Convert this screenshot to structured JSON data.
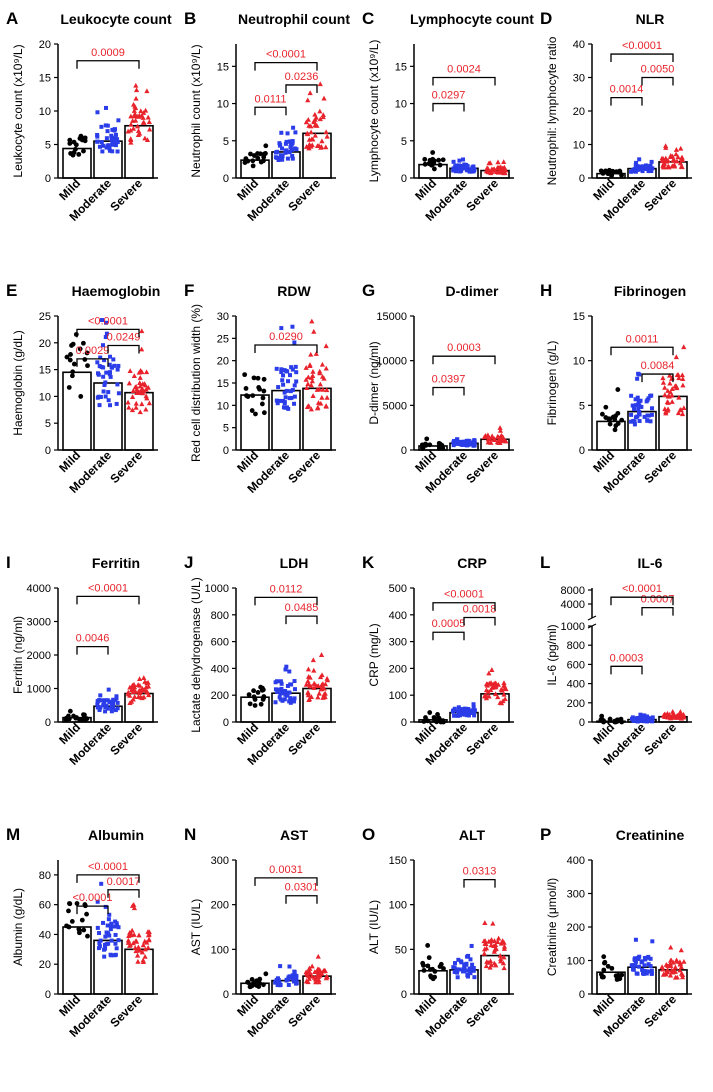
{
  "colors": {
    "mild": "#000000",
    "moderate": "#2b3de8",
    "severe": "#e8232b",
    "pvalue": "#e8232b"
  },
  "chart_data": [
    {
      "type": "bar",
      "panel": "A",
      "title": "Leukocyte count",
      "ylabel": "Leukocyte count (x10⁹/L)",
      "categories": [
        "Mild",
        "Moderate",
        "Severe"
      ],
      "values": [
        4.4,
        5.5,
        7.8
      ],
      "ylim": [
        0,
        20
      ],
      "yticks": [
        "0",
        "5",
        "10",
        "15",
        "20"
      ],
      "pvalues": [
        {
          "label": "0.0009",
          "from": 0,
          "to": 2,
          "y": 17.5
        }
      ]
    },
    {
      "type": "bar",
      "panel": "B",
      "title": "Neutrophil count",
      "ylabel": "Neutrophil count (x10⁹/L)",
      "categories": [
        "Mild",
        "Moderate",
        "Severe"
      ],
      "values": [
        2.4,
        3.5,
        6.0
      ],
      "ylim": [
        0,
        18
      ],
      "yticks": [
        "0",
        "5",
        "10",
        "15"
      ],
      "pvalues": [
        {
          "label": "0.0111",
          "from": 0,
          "to": 1,
          "y": 9.5
        },
        {
          "label": "0.0236",
          "from": 1,
          "to": 2,
          "y": 12.5
        },
        {
          "label": "<0.0001",
          "from": 0,
          "to": 2,
          "y": 15.5
        }
      ]
    },
    {
      "type": "bar",
      "panel": "C",
      "title": "Lymphocyte count",
      "ylabel": "Lymphocyte count (x10⁹/L)",
      "categories": [
        "Mild",
        "Moderate",
        "Severe"
      ],
      "values": [
        1.8,
        1.3,
        1.0
      ],
      "ylim": [
        0,
        18
      ],
      "yticks": [
        "0",
        "5",
        "10",
        "15"
      ],
      "pvalues": [
        {
          "label": "0.0297",
          "from": 0,
          "to": 1,
          "y": 10
        },
        {
          "label": "0.0024",
          "from": 0,
          "to": 2,
          "y": 13.5
        }
      ]
    },
    {
      "type": "bar",
      "panel": "D",
      "title": "NLR",
      "ylabel": "Neutrophil: lymphocyte ratio",
      "categories": [
        "Mild",
        "Moderate",
        "Severe"
      ],
      "values": [
        1.3,
        2.8,
        4.8
      ],
      "ylim": [
        0,
        40
      ],
      "yticks": [
        "0",
        "10",
        "20",
        "30",
        "40"
      ],
      "pvalues": [
        {
          "label": "0.0014",
          "from": 0,
          "to": 1,
          "y": 24
        },
        {
          "label": "0.0050",
          "from": 1,
          "to": 2,
          "y": 30
        },
        {
          "label": "<0.0001",
          "from": 0,
          "to": 2,
          "y": 37
        }
      ]
    },
    {
      "type": "bar",
      "panel": "E",
      "title": "Haemoglobin",
      "ylabel": "Haemoglobin (g/dL)",
      "categories": [
        "Mild",
        "Moderate",
        "Severe"
      ],
      "values": [
        14.5,
        12.5,
        10.7
      ],
      "ylim": [
        0,
        25
      ],
      "yticks": [
        "0",
        "5",
        "10",
        "15",
        "20",
        "25"
      ],
      "pvalues": [
        {
          "label": "0.0029",
          "from": 0,
          "to": 1,
          "y": 17
        },
        {
          "label": "0.0249",
          "from": 1,
          "to": 2,
          "y": 19.5
        },
        {
          "label": "<0.0001",
          "from": 0,
          "to": 2,
          "y": 22.5
        }
      ]
    },
    {
      "type": "bar",
      "panel": "F",
      "title": "RDW",
      "ylabel": "Red cell distribution width (%)",
      "categories": [
        "Mild",
        "Moderate",
        "Severe"
      ],
      "values": [
        12.3,
        13.3,
        13.8
      ],
      "ylim": [
        0,
        30
      ],
      "yticks": [
        "0",
        "5",
        "10",
        "15",
        "20",
        "25",
        "30"
      ],
      "pvalues": [
        {
          "label": "0.0290",
          "from": 0,
          "to": 2,
          "y": 23.5
        }
      ]
    },
    {
      "type": "bar",
      "panel": "G",
      "title": "D-dimer",
      "ylabel": "D-dimer  (ng/ml)",
      "categories": [
        "Mild",
        "Moderate",
        "Severe"
      ],
      "values": [
        450,
        750,
        1200
      ],
      "ylim": [
        0,
        15000
      ],
      "yticks": [
        "0",
        "5000",
        "10000",
        "15000"
      ],
      "pvalues": [
        {
          "label": "0.0397",
          "from": 0,
          "to": 1,
          "y": 7000
        },
        {
          "label": "0.0003",
          "from": 0,
          "to": 2,
          "y": 10500
        }
      ]
    },
    {
      "type": "bar",
      "panel": "H",
      "title": "Fibrinogen",
      "ylabel": "Fibrinogen  (g/L)",
      "categories": [
        "Mild",
        "Moderate",
        "Severe"
      ],
      "values": [
        3.2,
        4.3,
        6.0
      ],
      "ylim": [
        0,
        15
      ],
      "yticks": [
        "0",
        "5",
        "10",
        "15"
      ],
      "pvalues": [
        {
          "label": "0.0084",
          "from": 1,
          "to": 2,
          "y": 8.5
        },
        {
          "label": "0.0011",
          "from": 0,
          "to": 2,
          "y": 11.5
        }
      ]
    },
    {
      "type": "bar",
      "panel": "I",
      "title": "Ferritin",
      "ylabel": "Ferritin  (ng/ml)",
      "categories": [
        "Mild",
        "Moderate",
        "Severe"
      ],
      "values": [
        130,
        470,
        850
      ],
      "ylim": [
        0,
        4000
      ],
      "yticks": [
        "0",
        "1000",
        "2000",
        "3000",
        "4000"
      ],
      "pvalues": [
        {
          "label": "0.0046",
          "from": 0,
          "to": 1,
          "y": 2250
        },
        {
          "label": "<0.0001",
          "from": 0,
          "to": 2,
          "y": 3750
        }
      ]
    },
    {
      "type": "bar",
      "panel": "J",
      "title": "LDH",
      "ylabel": "Lactate dehydrogenase (U/L)",
      "categories": [
        "Mild",
        "Moderate",
        "Severe"
      ],
      "values": [
        185,
        215,
        250
      ],
      "ylim": [
        0,
        1000
      ],
      "yticks": [
        "0",
        "200",
        "400",
        "600",
        "800",
        "1000"
      ],
      "pvalues": [
        {
          "label": "0.0485",
          "from": 1,
          "to": 2,
          "y": 790
        },
        {
          "label": "0.0112",
          "from": 0,
          "to": 2,
          "y": 930
        }
      ]
    },
    {
      "type": "bar",
      "panel": "K",
      "title": "CRP",
      "ylabel": "CRP  (mg/L)",
      "categories": [
        "Mild",
        "Moderate",
        "Severe"
      ],
      "values": [
        8,
        35,
        105
      ],
      "ylim": [
        0,
        500
      ],
      "yticks": [
        "0",
        "100",
        "200",
        "300",
        "400",
        "500"
      ],
      "pvalues": [
        {
          "label": "0.0005",
          "from": 0,
          "to": 1,
          "y": 335
        },
        {
          "label": "0.0018",
          "from": 1,
          "to": 2,
          "y": 390
        },
        {
          "label": "<0.0001",
          "from": 0,
          "to": 2,
          "y": 445
        }
      ]
    },
    {
      "type": "bar",
      "panel": "L",
      "title": "IL-6",
      "ylabel": "IL-6  (pg/ml)",
      "categories": [
        "Mild",
        "Moderate",
        "Severe"
      ],
      "values": [
        8,
        25,
        55
      ],
      "ylim": [
        0,
        1000
      ],
      "yticks": [
        "0",
        "200",
        "400",
        "600",
        "800",
        "1000"
      ],
      "yticks_upper": [
        "4000",
        "8000"
      ],
      "pvalues": [
        {
          "label": "0.0003",
          "from": 0,
          "to": 1,
          "y": 580
        },
        {
          "label": "0.0007",
          "from": 1,
          "to": 2,
          "y": 1200
        },
        {
          "label": "<0.0001",
          "from": 0,
          "to": 2,
          "y": 1400
        }
      ]
    },
    {
      "type": "bar",
      "panel": "M",
      "title": "Albumin",
      "ylabel": "Albumin  (g/dL)",
      "categories": [
        "Mild",
        "Moderate",
        "Severe"
      ],
      "values": [
        45,
        36,
        30
      ],
      "ylim": [
        0,
        90
      ],
      "yticks": [
        "0",
        "20",
        "40",
        "60",
        "80"
      ],
      "pvalues": [
        {
          "label": "<0.0001",
          "from": 0,
          "to": 1,
          "y": 59
        },
        {
          "label": "0.0017",
          "from": 1,
          "to": 2,
          "y": 70
        },
        {
          "label": "<0.0001",
          "from": 0,
          "to": 2,
          "y": 80
        }
      ]
    },
    {
      "type": "bar",
      "panel": "N",
      "title": "AST",
      "ylabel": "AST (IU/L)",
      "categories": [
        "Mild",
        "Moderate",
        "Severe"
      ],
      "values": [
        24,
        30,
        40
      ],
      "ylim": [
        0,
        300
      ],
      "yticks": [
        "0",
        "100",
        "200",
        "300"
      ],
      "pvalues": [
        {
          "label": "0.0301",
          "from": 1,
          "to": 2,
          "y": 220
        },
        {
          "label": "0.0031",
          "from": 0,
          "to": 2,
          "y": 260
        }
      ]
    },
    {
      "type": "bar",
      "panel": "O",
      "title": "ALT",
      "ylabel": "ALT (IU/L)",
      "categories": [
        "Mild",
        "Moderate",
        "Severe"
      ],
      "values": [
        26,
        27,
        43
      ],
      "ylim": [
        0,
        150
      ],
      "yticks": [
        "0",
        "50",
        "100",
        "150"
      ],
      "pvalues": [
        {
          "label": "0.0313",
          "from": 1,
          "to": 2,
          "y": 128
        }
      ]
    },
    {
      "type": "bar",
      "panel": "P",
      "title": "Creatinine",
      "ylabel": "Creatinine (μmol/l)",
      "categories": [
        "Mild",
        "Moderate",
        "Severe"
      ],
      "values": [
        65,
        80,
        72
      ],
      "ylim": [
        0,
        400
      ],
      "yticks": [
        "0",
        "100",
        "200",
        "300",
        "400"
      ],
      "pvalues": []
    }
  ]
}
